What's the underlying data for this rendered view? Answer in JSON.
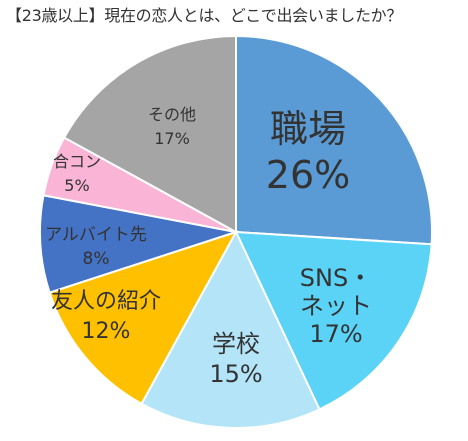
{
  "chart_data": {
    "type": "pie",
    "title": "【23歳以上】現在の恋人とは、どこで出会いましたか？",
    "slices": [
      {
        "label": "職場",
        "display": "26%",
        "value": 26,
        "color": "#5b9bd5"
      },
      {
        "label": "SNS・\nネット",
        "display": "17%",
        "value": 17,
        "color": "#5bd3f7"
      },
      {
        "label": "学校",
        "display": "15%",
        "value": 15,
        "color": "#b3e4f8"
      },
      {
        "label": "友人の紹介",
        "display": "12%",
        "value": 12,
        "color": "#ffc000"
      },
      {
        "label": "アルバイト先",
        "display": "8%",
        "value": 8,
        "color": "#4472c4"
      },
      {
        "label": "合コン",
        "display": "5%",
        "value": 5,
        "color": "#f9b4d6"
      },
      {
        "label": "その他",
        "display": "17%",
        "value": 17,
        "color": "#a5a5a5"
      }
    ]
  }
}
